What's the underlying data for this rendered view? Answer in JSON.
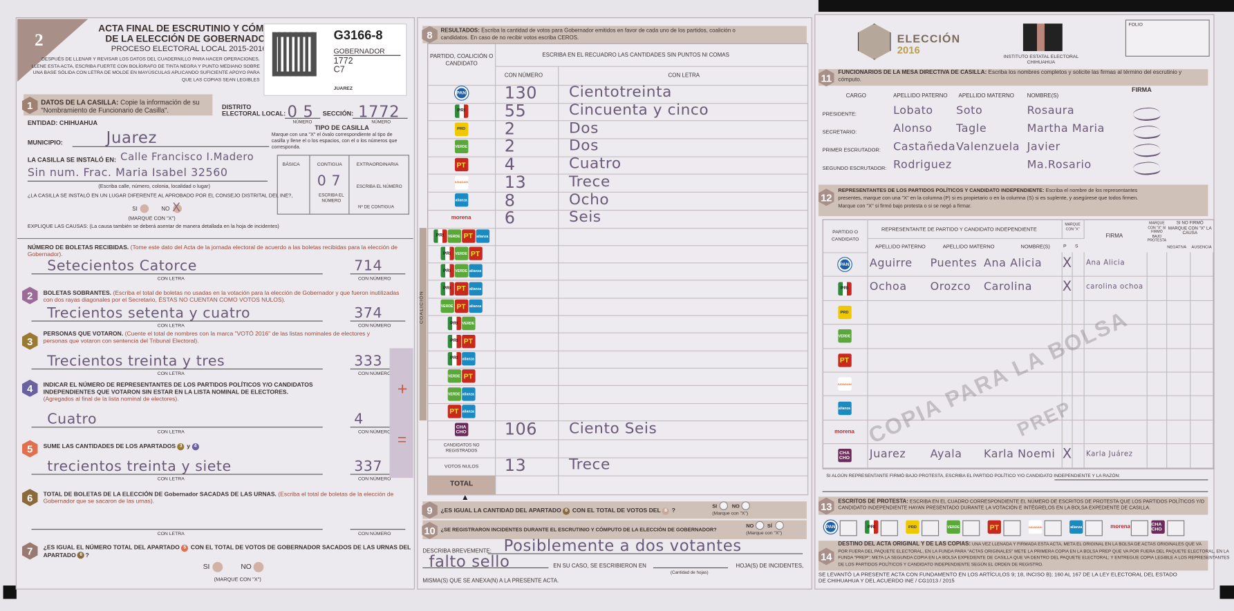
{
  "colors": {
    "band": "#cfc0b8",
    "handwriting": "#6a5878",
    "sum_box": "#cfc3d3"
  },
  "logos": {
    "pan": {
      "label": "PAN",
      "color": "#1f5fa8"
    },
    "pri": {
      "label": "PRI",
      "color": "#2f8a3a"
    },
    "prd": {
      "label": "PRD",
      "color": "#f0c800"
    },
    "verde": {
      "label": "VERDE",
      "color": "#5aa83a"
    },
    "pt": {
      "label": "PT",
      "color": "#c8281e"
    },
    "mc": {
      "label": "CIUDADANO",
      "color": "#e8682a"
    },
    "alianza": {
      "label": "alianza",
      "color": "#1a8ac0"
    },
    "morena": {
      "label": "morena",
      "color": "#b3282d"
    },
    "chacho": {
      "label": "CHA CHO",
      "color": "#6a2a5a"
    }
  },
  "header": {
    "form_number": "2",
    "title_1": "ACTA FINAL DE ESCRUTINIO Y CÓMPUTO",
    "title_2": "DE LA ELECCIÓN DE GOBERNADOR",
    "process": "PROCESO ELECTORAL LOCAL 2015-2016",
    "instructions": [
      "DESPUÉS DE LLENAR Y REVISAR LOS DATOS DEL CUADERNILLO PARA HACER OPERACIONES,",
      "LLENE ESTA ACTA, ESCRIBA FUERTE CON BOLÍGRAFO DE TINTA NEGRA Y PUNTO MEDIANO SOBRE",
      "UNA BASE SÓLIDA CON LETRA DE MOLDE EN MAYÚSCULAS APLICANDO SUFICIENTE APOYO PARA",
      "QUE LAS COPIAS SEAN LEGIBLES"
    ],
    "label": {
      "code": "G3166-8",
      "election": "GOBERNADOR",
      "section": "1772",
      "casilla": "C7",
      "municipality": "JUAREZ"
    }
  },
  "s1": {
    "num": "1",
    "title": "DATOS DE LA CASILLA:",
    "desc_1": "Copie la información de su",
    "desc_2": "\"Nombramiento de Funcionario de Casilla\".",
    "distrito_label_1": "DISTRITO",
    "distrito_label_2": "ELECTORAL LOCAL:",
    "distrito_value": "0 5",
    "numero": "NÚMERO",
    "seccion_label": "SECCIÓN:",
    "seccion_value": "1772",
    "entidad_label": "ENTIDAD:",
    "entidad_value": "CHIHUAHUA",
    "municipio_label": "MUNICIPIO:",
    "municipio_value": "Juarez",
    "instalo_label": "LA CASILLA SE INSTALÓ EN:",
    "instalo_line_1": "Calle Francisco I.Madero",
    "instalo_line_2": "Sin num. Frac. Maria Isabel 32560",
    "instalo_hint": "(Escriba calle, número, colonia, localidad o lugar)",
    "diferente_q": "¿LA CASILLA SE INSTALÓ EN UN LUGAR DIFERENTE AL APROBADO POR EL CONSEJO DISTRITAL DEL INE?,",
    "si": "SI",
    "no": "NO",
    "no_mark": "X",
    "marque": "(MARQUE CON \"X\")",
    "explique": "EXPLIQUE LAS CAUSAS:",
    "explique_hint": "(La causa también se deberá asentar de manera detallada en la hoja de incidentes)",
    "tipo_title": "TIPO DE CASILLA",
    "tipo_desc": [
      "Marque con una \"X\" el óvalo correspondiente al tipo de",
      "casilla y llene el o los espacios, con el o los números que",
      "corresponda."
    ],
    "basica": "BÁSICA",
    "contigua": "CONTIGUA",
    "extraordinaria": "EXTRAORDINARIA",
    "contigua_value": "0 7",
    "escriba_numero": "ESCRIBA EL NÚMERO",
    "escriba_el": "ESCRIBA EL",
    "numero_word": "NÚMERO",
    "n_contigua": "Nº DE CONTIGUA"
  },
  "left": {
    "con_letra": "CON LETRA",
    "con_numero": "CON NÚMERO",
    "recibidas_title": "NÚMERO DE BOLETAS RECIBIDAS.",
    "recibidas_note_1": "(Tome este dato del Acta de la jornada electoral de acuerdo a las boletas recibidas para la",
    "recibidas_note_2": "elección de Gobernador).",
    "recibidas_letra": "Setecientos Catorce",
    "recibidas_numero": "714",
    "s2_num": "2",
    "s2_title": "BOLETAS SOBRANTES.",
    "s2_note_1": "(Escriba el total de boletas no usadas en la votación para la elección de Gobernador y que fueron",
    "s2_note_2": "inutilizadas con dos rayas diagonales por el Secretario, ÉSTAS NO CUENTAN COMO VOTOS NULOS).",
    "s2_letra": "Trecientos setenta y cuatro",
    "s2_numero": "374",
    "s3_num": "3",
    "s3_title": "PERSONAS QUE VOTARON.",
    "s3_note_1": "(Cuente el total de nombres con la marca \"VOTÓ 2016\" de las listas nominales de electores y",
    "s3_note_2": "personas que votaron con sentencia del Tribunal Electoral).",
    "s3_letra": "Trecientos treinta y tres",
    "s3_numero": "333",
    "s4_num": "4",
    "s4_title_1": "INDICAR EL NÚMERO DE REPRESENTANTES DE LOS PARTIDOS POLÍTICOS Y/O CANDIDATOS",
    "s4_title_2": "INDEPENDIENTES QUE VOTARON SIN ESTAR EN LA LISTA NOMINAL DE ELECTORES.",
    "s4_note": "(Agregados al final de la lista nominal de electores).",
    "s4_letra": "Cuatro",
    "s4_numero": "4",
    "plus": "+",
    "equals": "=",
    "s5_num": "5",
    "s5_title": "SUME LAS CANTIDADES DE LOS APARTADOS",
    "s5_and": "y",
    "s5_letra": "trecientos treinta y siete",
    "s5_numero": "337",
    "s6_num": "6",
    "s6_title": "TOTAL DE BOLETAS DE LA ELECCIÓN DE Gobernador SACADAS DE LAS URNAS.",
    "s6_note_1": "(Escriba el total de boletas de la elección de",
    "s6_note_2": "Gobernador que se sacaron de las urnas).",
    "s7_num": "7",
    "s7_q_1": "¿ES IGUAL EL NÚMERO TOTAL DEL APARTADO",
    "s7_q_2": "CON EL TOTAL DE VOTOS DE GOBERNADOR SACADOS DE LAS URNAS DEL",
    "s7_q_3": "APARTADO",
    "s7_q_end": "?",
    "si": "SI",
    "no": "NO",
    "marque": "(MARQUE CON \"X\")"
  },
  "results": {
    "num": "8",
    "title": "RESULTADOS:",
    "desc_1": "Escriba la cantidad de votos para Gobernador emitidos en favor de cada uno de los partidos, coalición o",
    "desc_2": "candidatos. En caso de no recibir votos escriba CEROS.",
    "col_party": "PARTIDO, COALICIÓN O CANDIDATO",
    "col_instr": "ESCRIBA EN EL RECUADRO LAS CANTIDADES SIN PUNTOS NI COMAS",
    "col_number": "CON NÚMERO",
    "col_words": "CON LETRA",
    "coalition_label": "COALICIÓN",
    "parties": [
      {
        "logo": "pan",
        "number": "130",
        "words": "Cientotreinta"
      },
      {
        "logo": "pri",
        "number": "55",
        "words": "Cincuenta y cinco"
      },
      {
        "logo": "prd",
        "number": "2",
        "words": "Dos"
      },
      {
        "logo": "verde",
        "number": "2",
        "words": "Dos"
      },
      {
        "logo": "pt",
        "number": "4",
        "words": "Cuatro"
      },
      {
        "logo": "mc",
        "number": "13",
        "words": "Trece"
      },
      {
        "logo": "alianza",
        "number": "8",
        "words": "Ocho"
      },
      {
        "logo": "morena",
        "number": "6",
        "words": "Seis"
      }
    ],
    "coalitions": [
      {
        "logos": [
          "pri",
          "verde",
          "pt",
          "alianza"
        ]
      },
      {
        "logos": [
          "pri",
          "verde",
          "pt"
        ]
      },
      {
        "logos": [
          "pri",
          "verde",
          "alianza"
        ]
      },
      {
        "logos": [
          "pri",
          "pt",
          "alianza"
        ]
      },
      {
        "logos": [
          "verde",
          "pt",
          "alianza"
        ]
      },
      {
        "logos": [
          "pri",
          "verde"
        ]
      },
      {
        "logos": [
          "pri",
          "pt"
        ]
      },
      {
        "logos": [
          "pri",
          "alianza"
        ]
      },
      {
        "logos": [
          "verde",
          "pt"
        ]
      },
      {
        "logos": [
          "verde",
          "alianza"
        ]
      },
      {
        "logos": [
          "pt",
          "alianza"
        ]
      }
    ],
    "independent": {
      "logo": "chacho",
      "number": "106",
      "words": "Ciento Seis"
    },
    "no_registrados": {
      "label": "CANDIDATOS NO REGISTRADOS",
      "number": "",
      "words": ""
    },
    "nulos": {
      "label": "VOTOS NULOS",
      "number": "13",
      "words": "Trece"
    },
    "total": {
      "label": "TOTAL",
      "number": "",
      "words": ""
    }
  },
  "s9": {
    "num": "9",
    "q_1": "¿ES IGUAL LA CANTIDAD DEL APARTADO",
    "q_2": "CON EL TOTAL DE VOTOS DEL",
    "q_end": "?",
    "ref_a": "6",
    "ref_b": "8",
    "si": "SI",
    "no": "NO",
    "marque": "(Marque con \"X\")"
  },
  "s10": {
    "num": "10",
    "q": "¿SE REGISTRARON INCIDENTES DURANTE EL ESCRUTINIO Y CÓMPUTO DE LA ELECCIÓN DE GOBERNADOR?",
    "no": "NO",
    "si": "SÍ",
    "marque": "(Marque con \"X\")",
    "describa": "DESCRIBA BREVEMENTE:",
    "describa_1": "Posiblemente a dos votantes",
    "describa_2": "falto sello",
    "en_su_caso": "EN SU CASO, SE ESCRIBIERON EN",
    "cantidad": "(Cantidad de hojas)",
    "hojas": "HOJA(S) DE INCIDENTES,",
    "misma": "MISMA(S) QUE SE ANEXA(N) A LA PRESENTE ACTA."
  },
  "right": {
    "eleccion_1": "ELECCIÓN",
    "eleccion_2": "2016",
    "iee_1": "INSTITUTO ESTATAL ELECTORAL",
    "iee_2": "CHIHUAHUA",
    "folio": "FOLIO",
    "s11_num": "11",
    "s11_title": "FUNCIONARIOS DE LA MESA DIRECTIVA DE CASILLA:",
    "s11_desc": "Escriba los nombres completos y solicite las firmas al término del escrutinio y cómputo.",
    "s11_cols": [
      "CARGO",
      "APELLIDO PATERNO",
      "APELLIDO MATERNO",
      "NOMBRE(S)",
      "FIRMA"
    ],
    "officials": [
      {
        "role": "PRESIDENTE:",
        "paterno": "Lobato",
        "materno": "Soto",
        "nombre": "Rosaura",
        "firma": "(firma)"
      },
      {
        "role": "SECRETARIO:",
        "paterno": "Alonso",
        "materno": "Tagle",
        "nombre": "Martha Maria",
        "firma": "(firma)"
      },
      {
        "role": "PRIMER ESCRUTADOR:",
        "paterno": "Castañeda",
        "materno": "Valenzuela",
        "nombre": "Javier",
        "firma": "(firma)"
      },
      {
        "role": "SEGUNDO ESCRUTADOR:",
        "paterno": "Rodriguez",
        "materno": "",
        "nombre": "Ma.Rosario",
        "firma": "(firma)"
      }
    ],
    "s12_num": "12",
    "s12_title": "REPRESENTANTES DE LOS PARTIDOS POLÍTICOS Y CANDIDATO INDEPENDIENTE:",
    "s12_desc_1": "Escriba el nombre de los representantes",
    "s12_desc_2": "presentes, marque con una \"X\" en la columna (P) si es propietario o en la columna (S) si es suplente, y asegúrese que todos firmen.",
    "s12_desc_3": "Marque con \"X\" si firmó bajo protesta o si se negó a firmar.",
    "s12_cols": {
      "party": "PARTIDO O CANDIDATO",
      "rep": "REPRESENTANTE DE PARTIDO Y CANDIDATO INDEPENDIENTE",
      "paterno": "APELLIDO PATERNO",
      "materno": "APELLIDO MATERNO",
      "nombre": "NOMBRE(S)",
      "marque": "MARQUE CON \"X\"",
      "p": "P",
      "s": "S",
      "firma": "FIRMA",
      "protesta": "MARQUE CON \"X\" SI FIRMÓ BAJO PROTESTA",
      "no_firmo": "SI NO FIRMÓ MARQUE CON \"X\" LA CAUSA",
      "negativa": "NEGATIVA",
      "ausencia": "AUSENCIA"
    },
    "reps": [
      {
        "logo": "pan",
        "paterno": "Aguirre",
        "materno": "Puentes",
        "nombre": "Ana Alicia",
        "p": "X",
        "s": "",
        "firma": "Ana Alicia"
      },
      {
        "logo": "pri",
        "paterno": "Ochoa",
        "materno": "Orozco",
        "nombre": "Carolina",
        "p": "X",
        "s": "",
        "firma": "carolina ochoa"
      },
      {
        "logo": "prd"
      },
      {
        "logo": "verde"
      },
      {
        "logo": "pt"
      },
      {
        "logo": "mc"
      },
      {
        "logo": "alianza"
      },
      {
        "logo": "morena"
      },
      {
        "logo": "chacho",
        "paterno": "Juarez",
        "materno": "Ayala",
        "nombre": "Karla Noemi",
        "p": "X",
        "s": "",
        "firma": "Karla Juárez"
      }
    ],
    "watermark_1": "COPIA PARA LA BOLSA",
    "watermark_2": "PREP",
    "protesta_q": "SI ALGÚN REPRESENTANTE FIRMÓ BAJO PROTESTA, ESCRIBA EL PARTIDO POLÍTICO Y/O CANDIDATO INDEPENDIENTE Y LA RAZÓN:",
    "s13_num": "13",
    "s13_title": "ESCRITOS DE PROTESTA:",
    "s13_desc_1": "ESCRIBA EN EL CUADRO CORRESPONDIENTE EL NÚMERO DE ESCRITOS DE PROTESTA QUE LOS PARTIDOS POLÍTICOS Y/O",
    "s13_desc_2": "CANDIDATO INDEPENDIENTE HAYAN PRESENTADO DURANTE LA VOTACIÓN E INTÉGRELOS EN LA BOLSA  EXPEDIENTE DE CASILLA.",
    "s13_logos": [
      "pan",
      "pri",
      "prd",
      "verde",
      "pt",
      "mc",
      "alianza",
      "morena",
      "chacho"
    ],
    "s14_num": "14",
    "s14_title": "DESTINO DEL ACTA ORIGINAL Y DE LAS COPIAS:",
    "s14_desc": [
      "UNA VEZ LLENADA Y FIRMADA ESTA ACTA, META EL ORIGINAL EN LA BOLSA DE ACTAS ORIGINALES QUE VA",
      "POR FUERA DEL PAQUETE ELECTORAL, EN LA FUNDA PARA \"ACTAS ORIGINALES\" METE LA PRIMERA COPIA EN LA BOLSA PREP QUE VA POR FUERA DEL PAQUETE ELECTORAL, EN LA",
      "FUNDA \"PREP\"; META LA SEGUNDA COPIA EN LA BOLSA EXPEDIENTE DE CASILLA QUE VA DENTRO DEL PAQUETE ELECTORAL; Y ENTREGUE COPIA LEGIBLE A LOS REPRESENTANTES",
      "DE LOS PARTIDOS POLÍTICOS Y CANDIDATO INDEPENDIENTE SEGÚN EL ORDEN DE REGISTRO."
    ],
    "legal_1": "SE LEVANTÓ LA PRESENTE ACTA CON FUNDAMENTO EN LOS ARTÍCULOS 9; 18, INCISO B); 160 AL 167 DE LA LEY  ELECTORAL DEL ESTADO",
    "legal_2": "DE CHIHUAHUA Y DEL ACUERDO INE / CG1013 / 2015"
  }
}
